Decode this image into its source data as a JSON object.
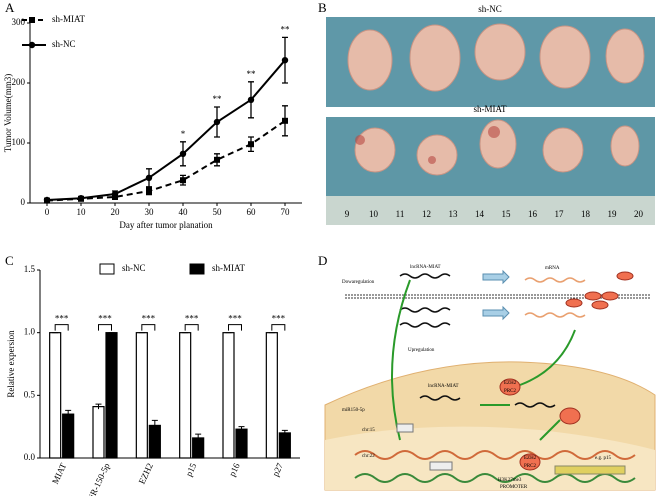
{
  "chart_data": [
    {
      "panel": "A",
      "type": "line",
      "xlabel": "Day after tumor planation",
      "ylabel": "Tumor Volume(mm3)",
      "x": [
        0,
        10,
        20,
        30,
        40,
        50,
        60,
        70
      ],
      "series": [
        {
          "name": "sh-MIAT",
          "color": "#000000",
          "dash": true,
          "marker": "square",
          "values": [
            4,
            7,
            10,
            20,
            38,
            72,
            98,
            137
          ],
          "errors": [
            2,
            2,
            4,
            6,
            8,
            10,
            12,
            25
          ]
        },
        {
          "name": "sh-NC",
          "color": "#000000",
          "dash": false,
          "marker": "circle",
          "values": [
            5,
            8,
            15,
            42,
            82,
            135,
            172,
            238
          ],
          "errors": [
            2,
            2,
            5,
            15,
            20,
            25,
            30,
            38
          ]
        }
      ],
      "annotations": [
        {
          "x": 40,
          "label": "*"
        },
        {
          "x": 50,
          "label": "**"
        },
        {
          "x": 60,
          "label": "**"
        },
        {
          "x": 70,
          "label": "**"
        }
      ],
      "xlim": [
        -5,
        75
      ],
      "xticks": [
        0,
        10,
        20,
        30,
        40,
        50,
        60,
        70
      ],
      "ylim": [
        0,
        300
      ],
      "yticks": [
        0,
        100,
        200,
        300
      ]
    },
    {
      "panel": "C",
      "type": "bar",
      "ylabel": "Relative expersion",
      "categories": [
        "MIAT",
        "miR-150-5p",
        "EZH2",
        "p15",
        "p16",
        "p27"
      ],
      "series": [
        {
          "name": "sh-NC",
          "color": "#ffffff",
          "values": [
            1,
            0.41,
            1,
            1,
            1,
            1
          ],
          "errors": [
            0,
            0.02,
            0,
            0,
            0,
            0
          ]
        },
        {
          "name": "sh-MIAT",
          "color": "#000000",
          "values": [
            0.35,
            1,
            0.26,
            0.16,
            0.23,
            0.2
          ],
          "errors": [
            0.03,
            0,
            0.04,
            0.03,
            0.02,
            0.02
          ]
        }
      ],
      "significance": [
        "***",
        "***",
        "***",
        "***",
        "***",
        "***"
      ],
      "ylim": [
        0,
        1.5
      ],
      "yticks": [
        {
          "value": 0,
          "label": "0.0"
        },
        0.5,
        {
          "value": 1,
          "label": "1.0"
        },
        1.5
      ]
    }
  ],
  "photo": {
    "panel": "B",
    "groups": [
      "sh-NC",
      "sh-MIAT"
    ],
    "ruler": [
      "9",
      "10",
      "11",
      "12",
      "13",
      "14",
      "15",
      "16",
      "17",
      "18",
      "19",
      "20"
    ]
  },
  "diagram": {
    "panel": "D",
    "texts": [
      "lncRNA-MIAT",
      "mRNA",
      "Dowaregulation",
      "Upregulation",
      "lncRNA-MIAT",
      "miR150-5p",
      "chr:15",
      "chr:22",
      "EZH2",
      "PRC2",
      "EZH2",
      "PRC2",
      "e.g. p15",
      "H3K27me3",
      "PROMOTER"
    ]
  }
}
